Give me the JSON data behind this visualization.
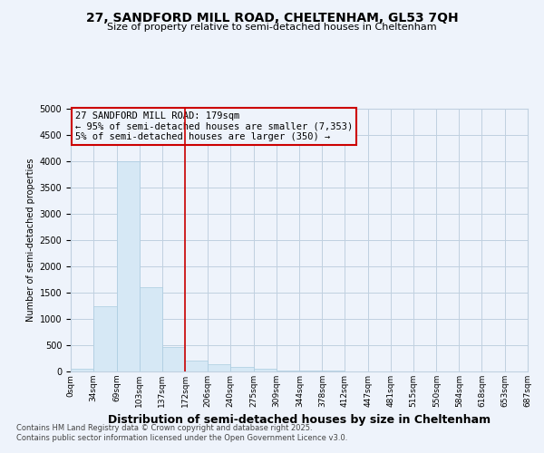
{
  "title": "27, SANDFORD MILL ROAD, CHELTENHAM, GL53 7QH",
  "subtitle": "Size of property relative to semi-detached houses in Cheltenham",
  "xlabel": "Distribution of semi-detached houses by size in Cheltenham",
  "ylabel": "Number of semi-detached properties",
  "footer_line1": "Contains HM Land Registry data © Crown copyright and database right 2025.",
  "footer_line2": "Contains public sector information licensed under the Open Government Licence v3.0.",
  "annotation_line1": "27 SANDFORD MILL ROAD: 179sqm",
  "annotation_line2": "← 95% of semi-detached houses are smaller (7,353)",
  "annotation_line3": "5% of semi-detached houses are larger (350) →",
  "bins": [
    0,
    34,
    69,
    103,
    137,
    172,
    206,
    240,
    275,
    309,
    344,
    378,
    412,
    447,
    481,
    515,
    550,
    584,
    618,
    653,
    687
  ],
  "bin_labels": [
    "0sqm",
    "34sqm",
    "69sqm",
    "103sqm",
    "137sqm",
    "172sqm",
    "206sqm",
    "240sqm",
    "275sqm",
    "309sqm",
    "344sqm",
    "378sqm",
    "412sqm",
    "447sqm",
    "481sqm",
    "515sqm",
    "550sqm",
    "584sqm",
    "618sqm",
    "653sqm",
    "687sqm"
  ],
  "values": [
    50,
    1250,
    4000,
    1600,
    470,
    200,
    130,
    80,
    50,
    25,
    15,
    10,
    5,
    3,
    2,
    1,
    1,
    0,
    0,
    0
  ],
  "bar_color": "#d6e8f5",
  "bar_edge_color": "#aacce0",
  "vline_color": "#cc0000",
  "vline_x": 172,
  "ylim": [
    0,
    5000
  ],
  "yticks": [
    0,
    500,
    1000,
    1500,
    2000,
    2500,
    3000,
    3500,
    4000,
    4500,
    5000
  ],
  "bg_color": "#eef3fb",
  "plot_bg_color": "#eef3fb",
  "grid_color": "#c0d0e0",
  "annotation_box_color": "#cc0000",
  "title_fontsize": 10,
  "subtitle_fontsize": 8,
  "xlabel_fontsize": 9,
  "ylabel_fontsize": 7,
  "tick_fontsize": 7,
  "xtick_fontsize": 6.5,
  "footer_fontsize": 6,
  "annotation_fontsize": 7.5
}
